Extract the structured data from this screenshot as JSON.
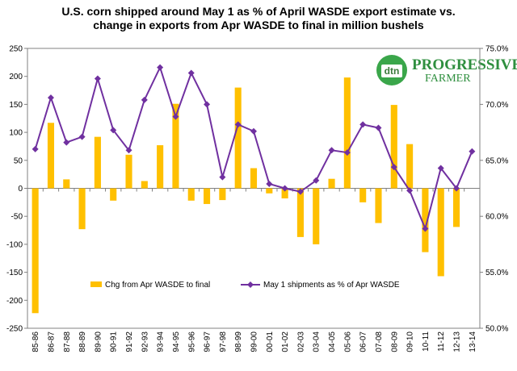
{
  "chart_data": {
    "type": "bar",
    "title_lines": [
      "U.S. corn shipped around May 1 as % of April WASDE export estimate vs.",
      "change in exports from Apr WASDE to final in million bushels"
    ],
    "categories": [
      "85-86",
      "86-87",
      "87-88",
      "88-89",
      "89-90",
      "90-91",
      "91-92",
      "92-93",
      "93-94",
      "94-95",
      "95-96",
      "96-97",
      "97-98",
      "98-99",
      "99-00",
      "00-01",
      "01-02",
      "02-03",
      "03-04",
      "04-05",
      "05-06",
      "06-07",
      "07-08",
      "08-09",
      "09-10",
      "10-11",
      "11-12",
      "12-13",
      "13-14"
    ],
    "series": [
      {
        "name": "Chg from Apr WASDE to final",
        "type": "bar",
        "axis": "left",
        "color": "#FFC000",
        "values": [
          -223,
          117,
          16,
          -73,
          92,
          -22,
          60,
          13,
          77,
          151,
          -22,
          -28,
          -21,
          180,
          36,
          -9,
          -18,
          -87,
          -100,
          17,
          198,
          -25,
          -62,
          149,
          79,
          -114,
          -157,
          -69,
          null
        ]
      },
      {
        "name": "May 1 shipments as % of Apr WASDE",
        "type": "line",
        "axis": "right",
        "color": "#7030A0",
        "values": [
          66.0,
          70.6,
          66.6,
          67.1,
          72.3,
          67.7,
          65.9,
          70.4,
          73.3,
          68.9,
          72.8,
          70.0,
          63.5,
          68.2,
          67.6,
          62.9,
          62.5,
          62.2,
          63.2,
          65.9,
          65.7,
          68.2,
          67.9,
          64.4,
          62.3,
          58.9,
          64.3,
          62.5,
          65.8
        ]
      }
    ],
    "y_left": {
      "min": -250,
      "max": 250,
      "step": 50,
      "ticks": [
        "250",
        "200",
        "150",
        "100",
        "50",
        "0",
        "-50",
        "-100",
        "-150",
        "-200",
        "-250"
      ]
    },
    "y_right": {
      "min": 50,
      "max": 75,
      "step": 5,
      "ticks": [
        "75.0%",
        "70.0%",
        "65.0%",
        "60.0%",
        "55.0%",
        "50.0%"
      ]
    },
    "grid": false,
    "legend_position": "bottom-inside"
  },
  "logo": {
    "dtn": "dtn",
    "line1": "PROGRESSIVE",
    "line2": "FARMER"
  },
  "colors": {
    "bar": "#FFC000",
    "line": "#7030A0",
    "axis": "#808080"
  }
}
